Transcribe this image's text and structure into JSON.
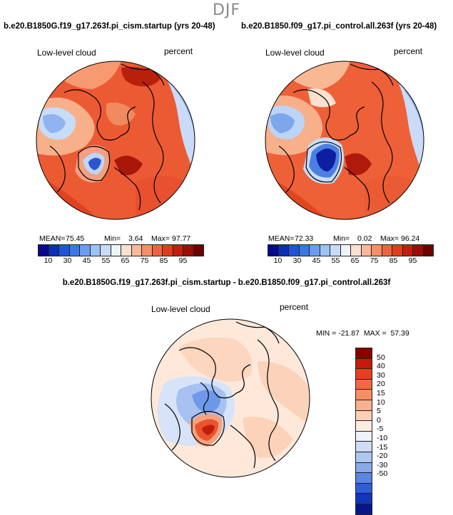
{
  "season": "DJF",
  "panels": {
    "left": {
      "title": "b.e20.B1850G.f19_g17.263f.pi_cism.startup (yrs 20-48)",
      "variable": "Low-level cloud",
      "units": "percent",
      "mean_label": "MEAN=",
      "mean": "75.45",
      "min_label": "Min=",
      "min": "3.64",
      "max_label": "Max=",
      "max": "97.77"
    },
    "right": {
      "title": "b.e20.B1850.f09_g17.pi_control.all.263f (yrs 20-48)",
      "variable": "Low-level cloud",
      "units": "percent",
      "mean_label": "MEAN=",
      "mean": "72.33",
      "min_label": "Min=",
      "min": "0.02",
      "max_label": "Max=",
      "max": "96.24"
    },
    "diff": {
      "title": "b.e20.B1850G.f19_g17.263f.pi_cism.startup - b.e20.B1850.f09_g17.pi_control.all.263f",
      "variable": "Low-level cloud",
      "units": "percent",
      "minmax_text": "MIN = -21.87  MAX =  57.39"
    }
  },
  "colorbar_top": {
    "ticks": [
      "10",
      "30",
      "45",
      "55",
      "65",
      "75",
      "85",
      "95"
    ],
    "colors": [
      "#08088c",
      "#0a2fb8",
      "#1e55d8",
      "#3a78e6",
      "#6a9cf0",
      "#9cc2f6",
      "#c8dcf8",
      "#eef4fb",
      "#fde0cf",
      "#f9b898",
      "#f58e66",
      "#ee6440",
      "#e03c1c",
      "#c51e0c",
      "#9e0c06",
      "#6e0000"
    ]
  },
  "colorbar_diff": {
    "ticks": [
      "50",
      "40",
      "30",
      "20",
      "15",
      "10",
      "5",
      "0",
      "-5",
      "-10",
      "-15",
      "-20",
      "-30",
      "-50"
    ],
    "colors": [
      "#8a0000",
      "#c81a0a",
      "#e8401e",
      "#f26a40",
      "#f78e66",
      "#f9b08e",
      "#fcd0b8",
      "#fdecdf",
      "#eef3fb",
      "#cfdcf6",
      "#aec6f2",
      "#88a9ec",
      "#5a86e4",
      "#2f5ed6",
      "#1236b8",
      "#06168a"
    ]
  },
  "chart_data": [
    {
      "type": "heatmap",
      "title": "b.e20.B1850G.f19_g17.263f.pi_cism.startup (yrs 20-48)",
      "projection": "north polar stereographic",
      "variable": "Low-level cloud",
      "units": "percent",
      "mean": 75.45,
      "min": 3.64,
      "max": 97.77,
      "levels": [
        10,
        30,
        45,
        55,
        65,
        75,
        85,
        95
      ]
    },
    {
      "type": "heatmap",
      "title": "b.e20.B1850.f09_g17.pi_control.all.263f (yrs 20-48)",
      "projection": "north polar stereographic",
      "variable": "Low-level cloud",
      "units": "percent",
      "mean": 72.33,
      "min": 0.02,
      "max": 96.24,
      "levels": [
        10,
        30,
        45,
        55,
        65,
        75,
        85,
        95
      ]
    },
    {
      "type": "heatmap",
      "title": "b.e20.B1850G.f19_g17.263f.pi_cism.startup - b.e20.B1850.f09_g17.pi_control.all.263f",
      "projection": "north polar stereographic",
      "variable": "Low-level cloud",
      "units": "percent",
      "min": -21.87,
      "max": 57.39,
      "levels": [
        -50,
        -30,
        -20,
        -15,
        -10,
        -5,
        0,
        5,
        10,
        15,
        20,
        30,
        40,
        50
      ]
    }
  ]
}
